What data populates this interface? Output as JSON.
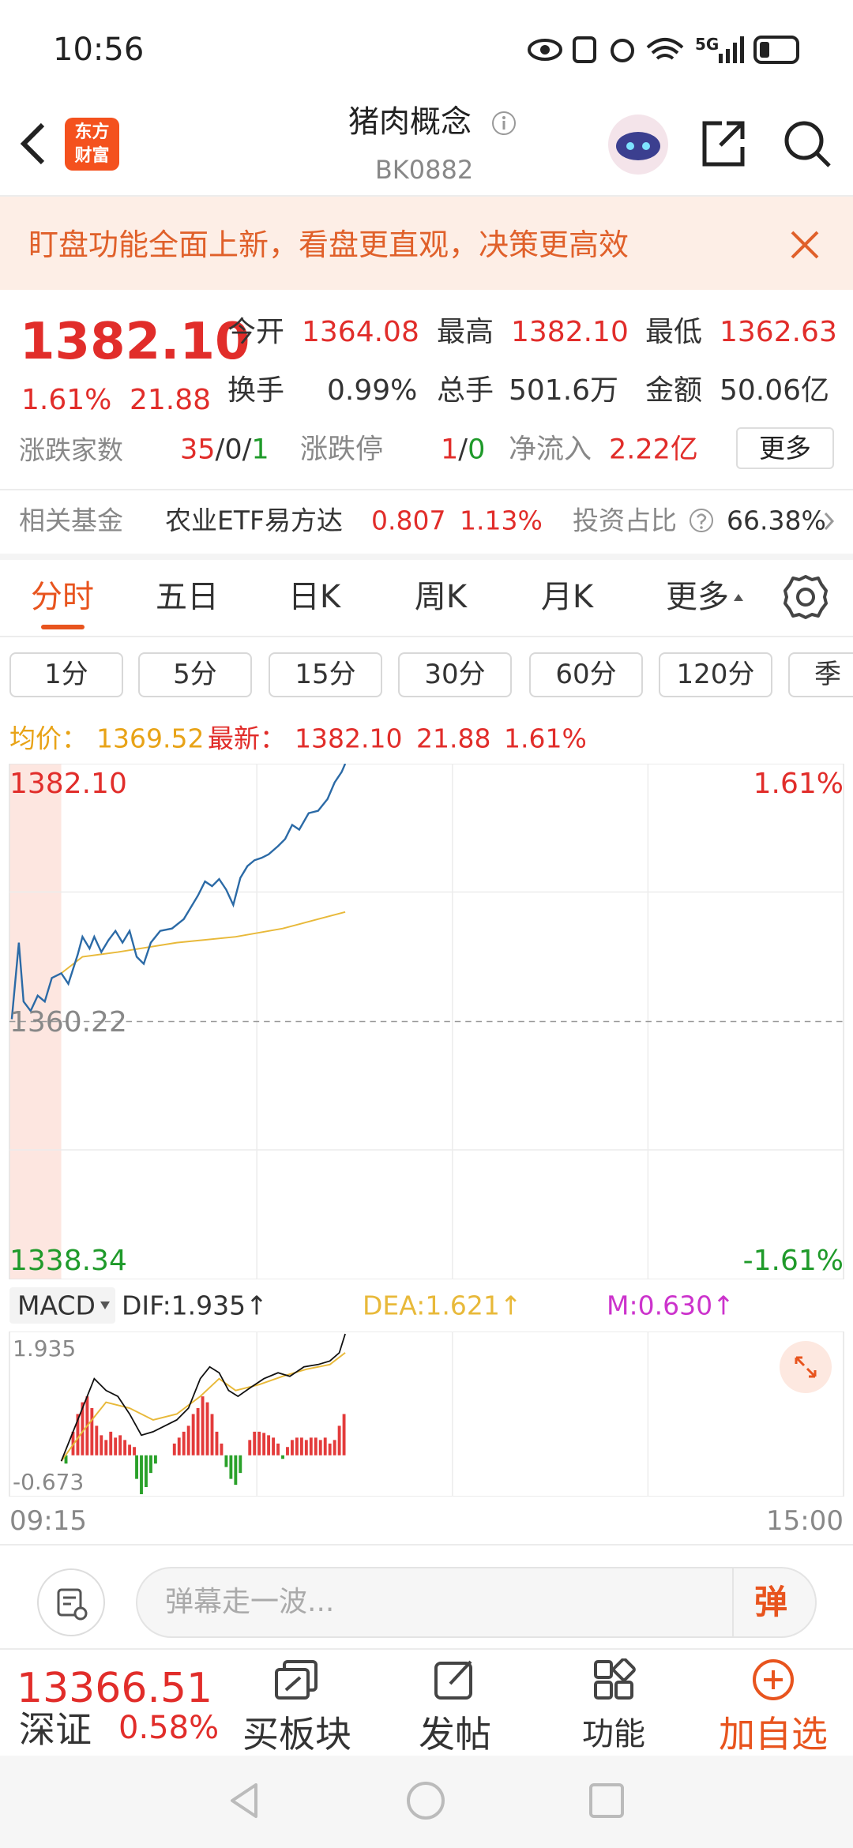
{
  "status_bar": {
    "time": "10:56",
    "network": "5G"
  },
  "header": {
    "logo_lines": [
      "东方",
      "财富"
    ],
    "title": "猪肉概念",
    "code": "BK0882"
  },
  "banner": {
    "text": "盯盘功能全面上新，看盘更直观，决策更高效"
  },
  "quote": {
    "price": "1382.10",
    "change_pct": "1.61%",
    "change": "21.88",
    "stats": [
      {
        "label": "今开",
        "value": "1364.08"
      },
      {
        "label": "最高",
        "value": "1382.10"
      },
      {
        "label": "最低",
        "value": "1362.63"
      },
      {
        "label": "换手",
        "value": "0.99%"
      },
      {
        "label": "总手",
        "value": "501.6万"
      },
      {
        "label": "金额",
        "value": "50.06亿"
      }
    ],
    "breadth": {
      "label": "涨跌家数",
      "up": "35",
      "flat": "0",
      "down": "1"
    },
    "limit": {
      "label": "涨跌停",
      "up": "1",
      "down": "0"
    },
    "separator": "/",
    "net_inflow": {
      "label": "净流入",
      "value": "2.22亿"
    },
    "more": "更多"
  },
  "fund": {
    "label": "相关基金",
    "name": "农业ETF易方达",
    "price": "0.807",
    "change": "1.13%",
    "ratio_label": "投资占比",
    "ratio": "66.38%"
  },
  "tabs": [
    "分时",
    "五日",
    "日K",
    "周K",
    "月K",
    "更多"
  ],
  "periods": [
    "1分",
    "5分",
    "15分",
    "30分",
    "60分",
    "120分",
    "季"
  ],
  "info": {
    "avg_label": "均价：",
    "avg": "1369.52",
    "latest_label": "最新：",
    "latest": "1382.10",
    "change": "21.88",
    "change_pct": "1.61%"
  },
  "chart": {
    "high": "1382.10",
    "base": "1360.22",
    "low": "1338.34",
    "high_pct": "1.61%",
    "low_pct": "-1.61%",
    "start_time": "09:15",
    "end_time": "15:00"
  },
  "macd": {
    "selector": "MACD",
    "dif": "DIF:1.935↑",
    "dea": "DEA:1.621↑",
    "m": "M:0.630↑",
    "max": "1.935",
    "min": "-0.673"
  },
  "comment": {
    "placeholder": "弹幕走一波...",
    "button": "弹"
  },
  "bottom_nav": {
    "index_value": "13366.51",
    "index_name": "深证",
    "index_change": "0.58%",
    "items": [
      "买板块",
      "发帖",
      "功能",
      "加自选"
    ]
  }
}
